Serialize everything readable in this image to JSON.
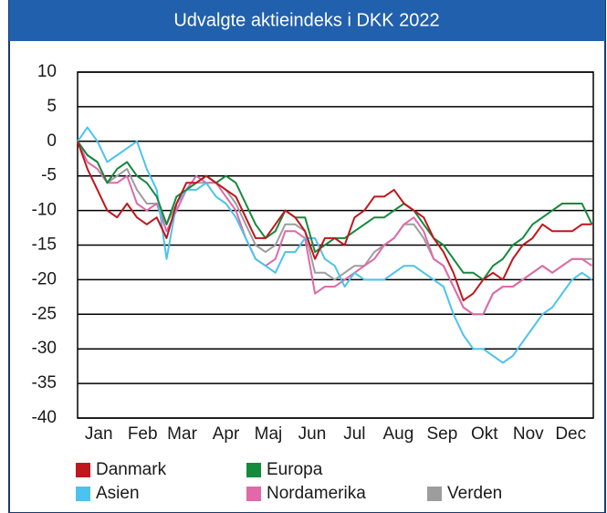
{
  "chart_data": {
    "type": "line",
    "title": "Udvalgte aktieindeks i DKK 2022",
    "x": [
      0,
      7,
      14,
      21,
      28,
      35,
      42,
      49,
      56,
      63,
      70,
      77,
      84,
      91,
      98,
      105,
      112,
      119,
      126,
      133,
      140,
      147,
      154,
      161,
      168,
      175,
      182,
      189,
      196,
      203,
      210,
      217,
      224,
      231,
      238,
      245,
      252,
      259,
      266,
      273,
      280,
      287,
      294,
      301,
      308,
      315,
      322,
      329,
      336,
      343,
      350,
      357,
      364
    ],
    "xlim": [
      0,
      365
    ],
    "xticks": [
      {
        "value": 15,
        "label": "Jan"
      },
      {
        "value": 46,
        "label": "Feb"
      },
      {
        "value": 74,
        "label": "Mar"
      },
      {
        "value": 105,
        "label": "Apr"
      },
      {
        "value": 135,
        "label": "Maj"
      },
      {
        "value": 166,
        "label": "Jun"
      },
      {
        "value": 196,
        "label": "Jul"
      },
      {
        "value": 227,
        "label": "Aug"
      },
      {
        "value": 258,
        "label": "Sep"
      },
      {
        "value": 288,
        "label": "Okt"
      },
      {
        "value": 319,
        "label": "Nov"
      },
      {
        "value": 349,
        "label": "Dec"
      }
    ],
    "ylim": [
      -40,
      10
    ],
    "yticks": [
      -40,
      -35,
      -30,
      -25,
      -20,
      -15,
      -10,
      -5,
      0,
      5,
      10
    ],
    "grid": true,
    "series": [
      {
        "name": "Danmark",
        "color": "#c0161c",
        "values": [
          0,
          -4,
          -7,
          -10,
          -11,
          -9,
          -11,
          -12,
          -11,
          -14,
          -9,
          -6,
          -6,
          -5,
          -6,
          -7,
          -8,
          -11,
          -14,
          -14,
          -12,
          -10,
          -11,
          -13,
          -17,
          -14,
          -14,
          -15,
          -11,
          -10,
          -8,
          -8,
          -7,
          -9,
          -10,
          -11,
          -14,
          -16,
          -19,
          -23,
          -22,
          -20,
          -19,
          -20,
          -17,
          -15,
          -14,
          -12,
          -13,
          -13,
          -13,
          -12,
          -12
        ]
      },
      {
        "name": "Europa",
        "color": "#138a3c",
        "values": [
          0,
          -2,
          -3,
          -6,
          -4,
          -3,
          -5,
          -6,
          -8,
          -12,
          -8,
          -7,
          -6,
          -5,
          -6,
          -5,
          -6,
          -9,
          -12,
          -14,
          -13,
          -10,
          -11,
          -11,
          -16,
          -15,
          -14,
          -14,
          -13,
          -12,
          -11,
          -11,
          -10,
          -9,
          -10,
          -12,
          -14,
          -15,
          -17,
          -19,
          -19,
          -20,
          -18,
          -17,
          -15,
          -14,
          -12,
          -11,
          -10,
          -9,
          -9,
          -9,
          -12
        ]
      },
      {
        "name": "Asien",
        "color": "#4cc3ec",
        "values": [
          0,
          2,
          0,
          -3,
          -2,
          -1,
          0,
          -4,
          -7,
          -17,
          -9,
          -7,
          -7,
          -6,
          -8,
          -9,
          -11,
          -14,
          -17,
          -18,
          -19,
          -16,
          -16,
          -14,
          -14,
          -17,
          -18,
          -21,
          -19,
          -20,
          -20,
          -20,
          -19,
          -18,
          -18,
          -19,
          -20,
          -21,
          -25,
          -28,
          -30,
          -30,
          -31,
          -32,
          -31,
          -29,
          -27,
          -25,
          -24,
          -22,
          -20,
          -19,
          -20
        ]
      },
      {
        "name": "Nordamerika",
        "color": "#e069a8",
        "values": [
          0,
          -3,
          -4,
          -6,
          -6,
          -5,
          -9,
          -10,
          -9,
          -13,
          -10,
          -7,
          -5,
          -6,
          -6,
          -8,
          -10,
          -14,
          -17,
          -18,
          -17,
          -13,
          -13,
          -14,
          -22,
          -21,
          -21,
          -20,
          -19,
          -18,
          -17,
          -15,
          -14,
          -12,
          -11,
          -13,
          -17,
          -18,
          -21,
          -24,
          -25,
          -25,
          -22,
          -21,
          -21,
          -20,
          -19,
          -18,
          -19,
          -18,
          -17,
          -17,
          -18
        ]
      },
      {
        "name": "Verden",
        "color": "#9d9d9d",
        "values": [
          0,
          -2,
          -3,
          -6,
          -5,
          -4,
          -7,
          -9,
          -9,
          -12,
          -9,
          -7,
          -6,
          -6,
          -6,
          -7,
          -9,
          -12,
          -15,
          -16,
          -15,
          -12,
          -12,
          -13,
          -19,
          -19,
          -20,
          -19,
          -18,
          -18,
          -16,
          -15,
          -14,
          -12,
          -12,
          -14,
          -17,
          -18,
          -21,
          -24,
          -25,
          -25,
          -22,
          -21,
          -21,
          -20,
          -19,
          -18,
          -19,
          -18,
          -17,
          -17,
          -17
        ]
      }
    ]
  }
}
